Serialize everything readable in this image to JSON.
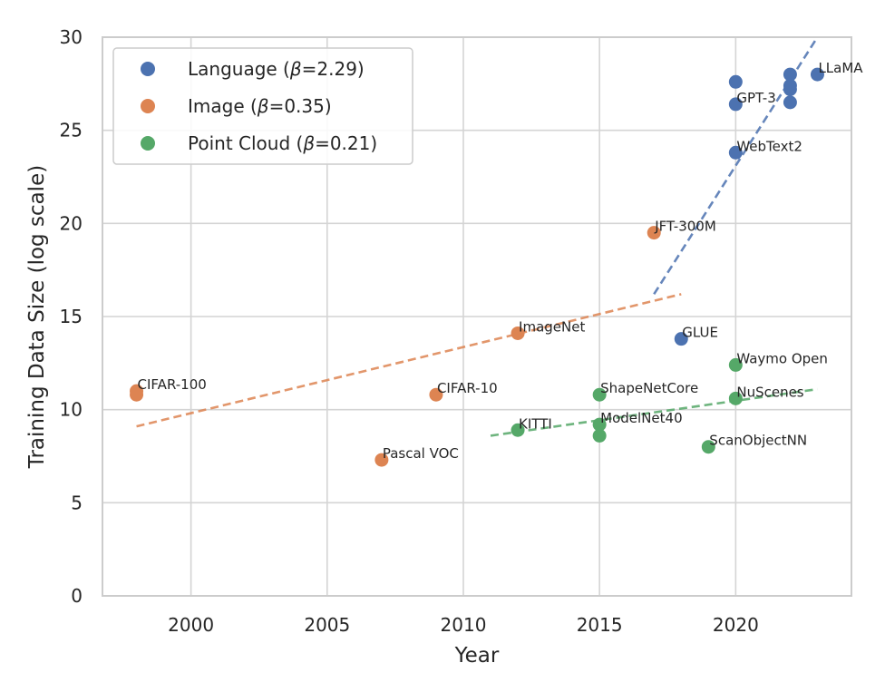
{
  "chart_data": {
    "type": "scatter",
    "title": "",
    "xlabel": "Year",
    "ylabel": "Training Data Size (log scale)",
    "xlim": [
      1996.75,
      2024.25
    ],
    "ylim": [
      0,
      30
    ],
    "xticks": [
      2000,
      2005,
      2010,
      2015,
      2020
    ],
    "yticks": [
      0,
      5,
      10,
      15,
      20,
      25,
      30
    ],
    "grid": true,
    "legend_position": "top-left",
    "series": [
      {
        "name": "Language (β=2.29)",
        "name_prefix": "Language (",
        "name_beta": "β",
        "name_suffix": "=2.29)",
        "color": "#4c72b0",
        "points": [
          {
            "x": 2020,
            "y": 27.6,
            "label": ""
          },
          {
            "x": 2020,
            "y": 26.4,
            "label": "GPT-3"
          },
          {
            "x": 2020,
            "y": 23.8,
            "label": "WebText2"
          },
          {
            "x": 2018,
            "y": 13.8,
            "label": "GLUE"
          },
          {
            "x": 2022,
            "y": 28.0,
            "label": ""
          },
          {
            "x": 2022,
            "y": 27.4,
            "label": ""
          },
          {
            "x": 2022,
            "y": 27.2,
            "label": ""
          },
          {
            "x": 2022,
            "y": 26.5,
            "label": ""
          },
          {
            "x": 2023,
            "y": 28.0,
            "label": "LLaMA"
          }
        ],
        "trend": {
          "x": [
            2017,
            2023
          ],
          "y": [
            16.2,
            30.0
          ]
        }
      },
      {
        "name": "Image (β=0.35)",
        "name_prefix": "Image (",
        "name_beta": "β",
        "name_suffix": "=0.35)",
        "color": "#dd8452",
        "points": [
          {
            "x": 1998,
            "y": 11.0,
            "label": "CIFAR-100"
          },
          {
            "x": 1998,
            "y": 10.8,
            "label": ""
          },
          {
            "x": 2007,
            "y": 7.3,
            "label": "Pascal VOC"
          },
          {
            "x": 2009,
            "y": 10.8,
            "label": "CIFAR-10"
          },
          {
            "x": 2012,
            "y": 14.1,
            "label": "ImageNet"
          },
          {
            "x": 2017,
            "y": 19.5,
            "label": "JFT-300M"
          }
        ],
        "trend": {
          "x": [
            1998,
            2018
          ],
          "y": [
            9.1,
            16.2
          ]
        }
      },
      {
        "name": "Point Cloud (β=0.21)",
        "name_prefix": "Point Cloud (",
        "name_beta": "β",
        "name_suffix": "=0.21)",
        "color": "#55a868",
        "points": [
          {
            "x": 2012,
            "y": 8.9,
            "label": "KITTI"
          },
          {
            "x": 2015,
            "y": 10.8,
            "label": "ShapeNetCore"
          },
          {
            "x": 2015,
            "y": 9.2,
            "label": "ModelNet40"
          },
          {
            "x": 2015,
            "y": 8.6,
            "label": ""
          },
          {
            "x": 2019,
            "y": 8.0,
            "label": "ScanObjectNN"
          },
          {
            "x": 2020,
            "y": 12.4,
            "label": "Waymo Open"
          },
          {
            "x": 2020,
            "y": 10.6,
            "label": "NuScenes"
          }
        ],
        "trend": {
          "x": [
            2011,
            2023
          ],
          "y": [
            8.6,
            11.1
          ]
        }
      }
    ]
  }
}
